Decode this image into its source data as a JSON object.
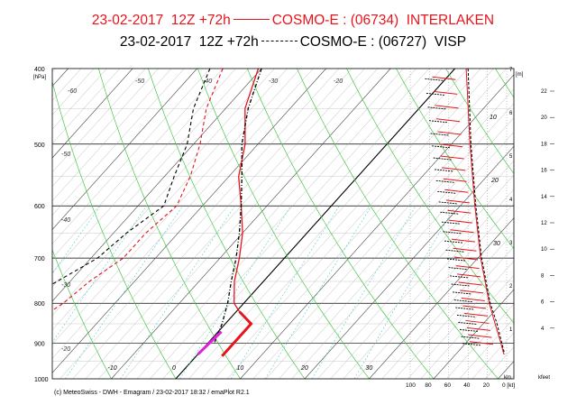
{
  "title_line_1": {
    "prefix": "23-02-2017  12Z +72h",
    "suffix": "COSMO-E : (06734)  INTERLAKEN",
    "color": "#e8141c"
  },
  "title_line_2": {
    "prefix": "23-02-2017  12Z +72h",
    "suffix": "COSMO-E : (06727)  VISP",
    "color": "#000000"
  },
  "footer": "(c) MeteoSwiss - DWH - Emagram / 23-02-2017  18:32 / emaPlot R2.1",
  "chart_data": {
    "type": "line",
    "subtype": "skew-T emagram",
    "pressure_label": "400\n[hPa]",
    "pressure_ticks": [
      400,
      500,
      600,
      700,
      800,
      900,
      1000
    ],
    "temperature_ticks": [
      -60,
      -50,
      -40,
      -30,
      -20,
      -10,
      0,
      10,
      20,
      30
    ],
    "theta_labels": [
      -60,
      -50,
      -40,
      -30,
      -20,
      -10,
      0,
      10,
      20,
      30
    ],
    "wind_axis_ticks": [
      "100",
      "80",
      "60",
      "40",
      "20",
      "0 [kt]"
    ],
    "height_km_label": "km",
    "height_kfeet_label": "kfeet",
    "height_m_label": "[m]",
    "height_km_ticks": [
      1,
      2,
      3,
      4,
      5,
      6,
      7
    ],
    "height_kfeet_ticks": [
      4,
      6,
      8,
      10,
      12,
      14,
      16,
      18,
      20,
      22
    ],
    "right_panel_labels": [
      10,
      20,
      30
    ],
    "series": [
      {
        "name": "INTERLAKEN",
        "color": "#e8141c",
        "style": "solid/dashed",
        "temperature": [
          [
            400,
            -30.5
          ],
          [
            450,
            -27
          ],
          [
            500,
            -22
          ],
          [
            550,
            -18.5
          ],
          [
            600,
            -14
          ],
          [
            650,
            -10
          ],
          [
            700,
            -7
          ],
          [
            750,
            -4.5
          ],
          [
            800,
            -1.5
          ],
          [
            820,
            0.5
          ]
        ],
        "dewpoint": [
          [
            400,
            -36
          ],
          [
            450,
            -33
          ],
          [
            500,
            -29
          ],
          [
            550,
            -26
          ],
          [
            600,
            -24
          ],
          [
            650,
            -25
          ],
          [
            700,
            -25
          ],
          [
            750,
            -27
          ],
          [
            800,
            -28
          ],
          [
            850,
            -30
          ],
          [
            870,
            -33
          ],
          [
            900,
            -33
          ]
        ]
      },
      {
        "name": "VISP",
        "color": "#000000",
        "style": "dashed",
        "temperature": [
          [
            400,
            -30
          ],
          [
            450,
            -26.5
          ],
          [
            500,
            -22.5
          ],
          [
            550,
            -18
          ],
          [
            600,
            -14
          ],
          [
            650,
            -10.5
          ],
          [
            700,
            -7.5
          ],
          [
            750,
            -5
          ],
          [
            800,
            -2.5
          ],
          [
            850,
            -0.5
          ],
          [
            900,
            1
          ]
        ],
        "dewpoint": [
          [
            400,
            -38
          ],
          [
            450,
            -35
          ],
          [
            500,
            -31
          ],
          [
            550,
            -28.5
          ],
          [
            600,
            -26
          ],
          [
            650,
            -28
          ],
          [
            700,
            -29
          ],
          [
            750,
            -32
          ],
          [
            800,
            -35
          ],
          [
            850,
            -40
          ],
          [
            870,
            -38
          ],
          [
            900,
            -34
          ]
        ]
      }
    ],
    "surface_bars": [
      {
        "color": "#e8141c",
        "points": [
          [
            820,
            0.5
          ],
          [
            850,
            4
          ],
          [
            935,
            4
          ]
        ]
      },
      {
        "color": "#e020e0",
        "points": [
          [
            870,
            0.5
          ],
          [
            930,
            0
          ]
        ]
      }
    ]
  }
}
